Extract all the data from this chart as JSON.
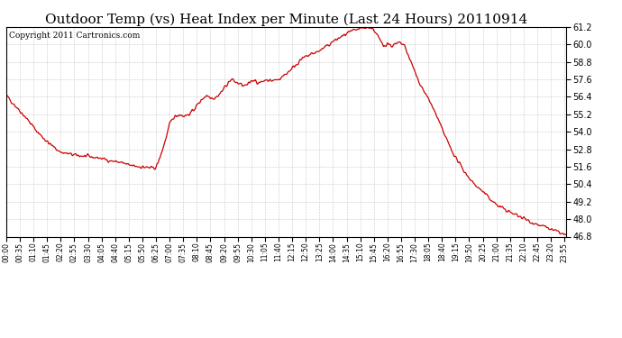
{
  "title": "Outdoor Temp (vs) Heat Index per Minute (Last 24 Hours) 20110914",
  "copyright": "Copyright 2011 Cartronics.com",
  "line_color": "#cc0000",
  "bg_color": "#ffffff",
  "plot_bg_color": "#ffffff",
  "grid_color": "#bbbbbb",
  "ylim": [
    46.8,
    61.2
  ],
  "ytick_min": 46.8,
  "ytick_max": 61.2,
  "ytick_step": 1.2,
  "title_fontsize": 11,
  "copyright_fontsize": 6.5,
  "xtick_step_minutes": 35,
  "keypoints": [
    [
      0,
      56.5
    ],
    [
      20,
      55.9
    ],
    [
      50,
      55.0
    ],
    [
      80,
      54.0
    ],
    [
      110,
      53.2
    ],
    [
      140,
      52.6
    ],
    [
      175,
      52.4
    ],
    [
      210,
      52.3
    ],
    [
      240,
      52.2
    ],
    [
      270,
      52.0
    ],
    [
      295,
      51.9
    ],
    [
      315,
      51.7
    ],
    [
      330,
      51.65
    ],
    [
      345,
      51.6
    ],
    [
      360,
      51.55
    ],
    [
      375,
      51.5
    ],
    [
      385,
      51.55
    ],
    [
      395,
      52.2
    ],
    [
      410,
      53.5
    ],
    [
      420,
      54.5
    ],
    [
      430,
      55.0
    ],
    [
      445,
      55.2
    ],
    [
      455,
      55.1
    ],
    [
      465,
      55.15
    ],
    [
      475,
      55.3
    ],
    [
      490,
      55.8
    ],
    [
      505,
      56.3
    ],
    [
      515,
      56.5
    ],
    [
      525,
      56.4
    ],
    [
      535,
      56.3
    ],
    [
      545,
      56.5
    ],
    [
      555,
      56.8
    ],
    [
      565,
      57.2
    ],
    [
      575,
      57.5
    ],
    [
      580,
      57.6
    ],
    [
      590,
      57.4
    ],
    [
      600,
      57.3
    ],
    [
      610,
      57.15
    ],
    [
      620,
      57.2
    ],
    [
      630,
      57.5
    ],
    [
      640,
      57.6
    ],
    [
      645,
      57.4
    ],
    [
      650,
      57.3
    ],
    [
      660,
      57.5
    ],
    [
      670,
      57.6
    ],
    [
      680,
      57.5
    ],
    [
      690,
      57.55
    ],
    [
      700,
      57.6
    ],
    [
      720,
      58.0
    ],
    [
      740,
      58.5
    ],
    [
      760,
      59.0
    ],
    [
      780,
      59.3
    ],
    [
      800,
      59.5
    ],
    [
      820,
      59.8
    ],
    [
      840,
      60.2
    ],
    [
      860,
      60.5
    ],
    [
      880,
      60.8
    ],
    [
      900,
      61.0
    ],
    [
      915,
      61.1
    ],
    [
      925,
      61.15
    ],
    [
      935,
      61.2
    ],
    [
      945,
      61.0
    ],
    [
      955,
      60.6
    ],
    [
      960,
      60.3
    ],
    [
      965,
      60.1
    ],
    [
      970,
      59.9
    ],
    [
      975,
      60.0
    ],
    [
      980,
      60.1
    ],
    [
      985,
      60.0
    ],
    [
      990,
      59.9
    ],
    [
      995,
      59.95
    ],
    [
      1000,
      60.0
    ],
    [
      1005,
      60.05
    ],
    [
      1010,
      60.1
    ],
    [
      1015,
      60.05
    ],
    [
      1020,
      60.0
    ],
    [
      1025,
      59.8
    ],
    [
      1030,
      59.5
    ],
    [
      1040,
      58.8
    ],
    [
      1060,
      57.5
    ],
    [
      1080,
      56.5
    ],
    [
      1100,
      55.5
    ],
    [
      1120,
      54.2
    ],
    [
      1140,
      53.0
    ],
    [
      1160,
      52.0
    ],
    [
      1180,
      51.2
    ],
    [
      1200,
      50.5
    ],
    [
      1220,
      50.0
    ],
    [
      1240,
      49.5
    ],
    [
      1260,
      49.0
    ],
    [
      1280,
      48.7
    ],
    [
      1300,
      48.4
    ],
    [
      1320,
      48.2
    ],
    [
      1350,
      47.8
    ],
    [
      1380,
      47.5
    ],
    [
      1410,
      47.2
    ],
    [
      1430,
      47.0
    ],
    [
      1439,
      46.85
    ]
  ]
}
